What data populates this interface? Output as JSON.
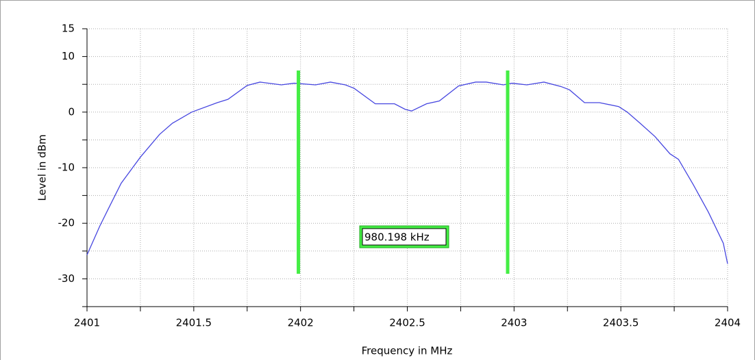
{
  "chart_data": {
    "type": "line",
    "xlabel": "Frequency in MHz",
    "ylabel": "Level in dBm",
    "x": [
      2401.0,
      2401.06,
      2401.1,
      2401.16,
      2401.25,
      2401.34,
      2401.4,
      2401.49,
      2401.61,
      2401.66,
      2401.75,
      2401.81,
      2401.91,
      2401.97,
      2402.07,
      2402.14,
      2402.21,
      2402.25,
      2402.35,
      2402.44,
      2402.49,
      2402.52,
      2402.59,
      2402.65,
      2402.74,
      2402.82,
      2402.87,
      2402.95,
      2402.99,
      2403.06,
      2403.14,
      2403.22,
      2403.26,
      2403.33,
      2403.4,
      2403.49,
      2403.53,
      2403.59,
      2403.66,
      2403.73,
      2403.77,
      2403.84,
      2403.91,
      2403.98,
      2404.0
    ],
    "series": [
      {
        "color": "#4646e0",
        "values": [
          -25.7,
          -20.5,
          -17.4,
          -12.8,
          -8.1,
          -4.0,
          -2.0,
          0,
          1.7,
          2.3,
          4.8,
          5.4,
          4.9,
          5.2,
          4.9,
          5.4,
          4.9,
          4.3,
          1.5,
          1.5,
          0.5,
          0.2,
          1.5,
          2.0,
          4.7,
          5.4,
          5.4,
          4.9,
          5.2,
          4.9,
          5.4,
          4.6,
          4.0,
          1.7,
          1.7,
          1.0,
          0,
          -2.0,
          -4.4,
          -7.5,
          -8.5,
          -13.1,
          -18.0,
          -23.6,
          -27.3
        ]
      }
    ],
    "xlim": [
      2401,
      2404
    ],
    "ylim": [
      -35,
      15
    ],
    "xticks": [
      2401,
      2401.5,
      2402,
      2402.5,
      2403,
      2403.5,
      2404
    ],
    "xticks_minor": [
      2401.25,
      2401.75,
      2402.25,
      2402.75,
      2403.25,
      2403.75
    ],
    "yticks": [
      -30,
      -20,
      -10,
      0,
      10,
      15
    ],
    "yticks_minor": [
      -35,
      -25,
      -15,
      -5,
      5
    ],
    "grid": true,
    "markers": [
      2401.99,
      2402.97
    ],
    "marker_color": "#44ee44",
    "annotation": "980.198 kHz"
  }
}
